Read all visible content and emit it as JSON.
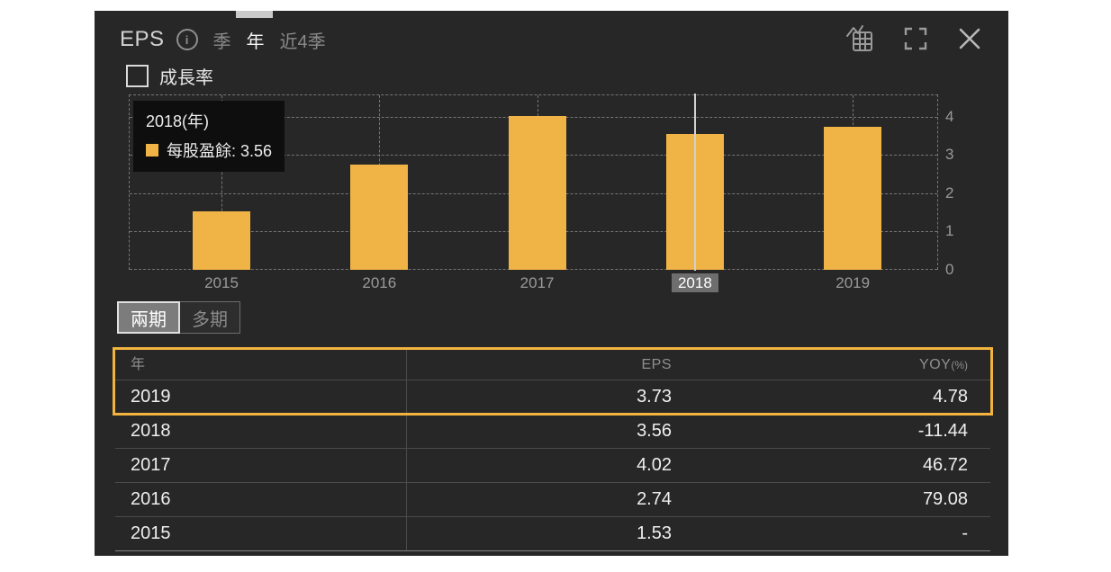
{
  "header": {
    "title": "EPS",
    "info_icon": "i",
    "tabs": [
      {
        "label": "季",
        "active": false
      },
      {
        "label": "年",
        "active": true
      },
      {
        "label": "近4季",
        "active": false
      }
    ],
    "action_icons": [
      "chart-table-icon",
      "fullscreen-icon",
      "close-icon"
    ]
  },
  "growth_toggle": {
    "label": "成長率",
    "checked": false
  },
  "tooltip": {
    "title": "2018(年)",
    "line": "每股盈餘: 3.56",
    "swatch_color": "#f0b446"
  },
  "chart_data": {
    "type": "bar",
    "title": "EPS",
    "categories": [
      "2015",
      "2016",
      "2017",
      "2018",
      "2019"
    ],
    "values": [
      1.53,
      2.74,
      4.02,
      3.56,
      3.73
    ],
    "series_name": "每股盈餘",
    "xlabel": "",
    "ylabel": "",
    "ylim": [
      0,
      4.56
    ],
    "yticks": [
      0,
      1,
      2,
      3,
      4
    ],
    "grid": "dashed",
    "legend_position": "none",
    "bar_color": "#f0b446",
    "highlighted_category": "2018",
    "highlight_value": 3.56
  },
  "period_toggle": {
    "options": [
      {
        "label": "兩期",
        "active": true
      },
      {
        "label": "多期",
        "active": false
      }
    ]
  },
  "table": {
    "headers": {
      "year": "年",
      "eps": "EPS",
      "yoy": "YOY",
      "yoy_suffix": "(%)"
    },
    "rows": [
      {
        "year": "2019",
        "eps": "3.73",
        "yoy": "4.78"
      },
      {
        "year": "2018",
        "eps": "3.56",
        "yoy": "-11.44"
      },
      {
        "year": "2017",
        "eps": "4.02",
        "yoy": "46.72"
      },
      {
        "year": "2016",
        "eps": "2.74",
        "yoy": "79.08"
      },
      {
        "year": "2015",
        "eps": "1.53",
        "yoy": "-"
      }
    ],
    "highlighted_row": "2019",
    "highlight_border_color": "#f2b43e"
  },
  "colors": {
    "panel_bg": "#272727",
    "accent_orange": "#f0b446",
    "grid": "#757575",
    "text_gray": "#8f8f8f",
    "text_white": "#efefef",
    "highlight_label_bg": "#6e6e6e",
    "crosshair": "#d0d0d0"
  }
}
